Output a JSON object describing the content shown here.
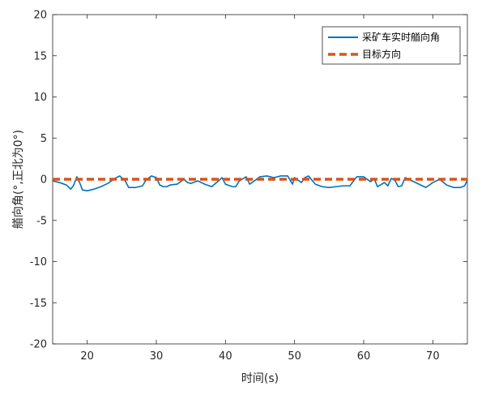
{
  "chart_data": {
    "type": "line",
    "xlabel": "时间(s)",
    "ylabel": "艏向角(°,正北为0°)",
    "xlim": [
      15,
      75
    ],
    "ylim": [
      -20,
      20
    ],
    "xticks": [
      20,
      30,
      40,
      50,
      60,
      70
    ],
    "yticks": [
      -20,
      -15,
      -10,
      -5,
      0,
      5,
      10,
      15,
      20
    ],
    "grid": false,
    "legend_position": "top-right",
    "series": [
      {
        "name": "采矿车实时艏向角",
        "color": "#0072BD",
        "style": "solid",
        "x": [
          15,
          16,
          17,
          17.6,
          18,
          18.5,
          19,
          19.3,
          20,
          21,
          22,
          23,
          24,
          24.7,
          25.5,
          26,
          27,
          28,
          28.5,
          29.3,
          30,
          30.5,
          31,
          31.5,
          32,
          33,
          34,
          34.5,
          35,
          36,
          37,
          38,
          39,
          39.5,
          40,
          41,
          41.5,
          42,
          43,
          43.5,
          44,
          45,
          46,
          47,
          48,
          49,
          49.7,
          50,
          51,
          51.5,
          52,
          53,
          54,
          55,
          56,
          57,
          58,
          59,
          60,
          61,
          61.5,
          62,
          63,
          63.5,
          64,
          64.5,
          65,
          65.5,
          66,
          67,
          68,
          69,
          70,
          71,
          72,
          73,
          74,
          74.6,
          75
        ],
        "y": [
          -0.2,
          -0.4,
          -0.7,
          -1.2,
          -0.8,
          0.3,
          -0.6,
          -1.3,
          -1.4,
          -1.2,
          -0.9,
          -0.5,
          0.1,
          0.4,
          -0.2,
          -1.0,
          -1.0,
          -0.8,
          -0.1,
          0.4,
          0.2,
          -0.7,
          -0.9,
          -0.9,
          -0.7,
          -0.6,
          0.0,
          -0.4,
          -0.5,
          -0.2,
          -0.6,
          -0.9,
          -0.2,
          0.2,
          -0.6,
          -0.9,
          -0.9,
          -0.2,
          0.3,
          -0.6,
          -0.3,
          0.3,
          0.4,
          0.2,
          0.4,
          0.4,
          -0.6,
          0.2,
          -0.4,
          0.2,
          0.4,
          -0.6,
          -0.9,
          -1.0,
          -0.9,
          -0.8,
          -0.8,
          0.3,
          0.3,
          -0.3,
          0.1,
          -0.9,
          -0.4,
          -0.8,
          0.1,
          -0.1,
          -0.9,
          -0.8,
          0.2,
          -0.2,
          -0.6,
          -1.0,
          -0.4,
          0.0,
          -0.7,
          -1.0,
          -1.0,
          -0.8,
          -0.1
        ]
      },
      {
        "name": "目标方向",
        "color": "#D95319",
        "style": "dashed",
        "x": [
          15,
          75
        ],
        "y": [
          0,
          0
        ]
      }
    ]
  }
}
